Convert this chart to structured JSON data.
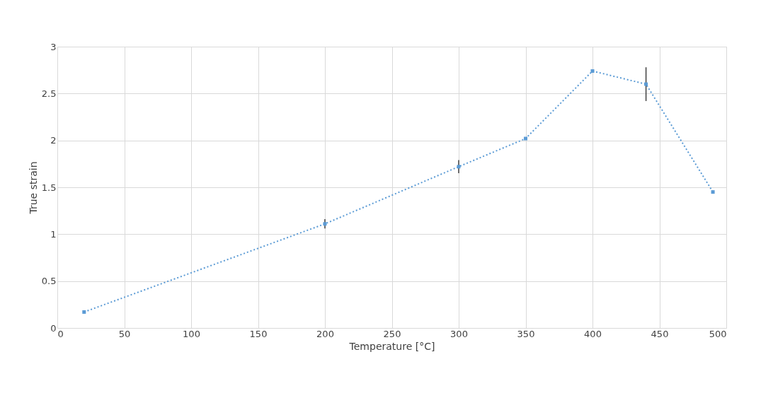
{
  "chart_data": {
    "type": "line",
    "xlabel": "Temperature [°C]",
    "ylabel": "True strain",
    "x": [
      20,
      200,
      300,
      350,
      400,
      440,
      490
    ],
    "series": [
      {
        "color": "#5b9bd5",
        "values": [
          0.17,
          1.11,
          1.72,
          2.02,
          2.74,
          2.6,
          1.45
        ],
        "errors": [
          null,
          0.05,
          0.07,
          null,
          null,
          0.18,
          null
        ]
      }
    ],
    "xlim": [
      0,
      500
    ],
    "xticks": [
      0,
      50,
      100,
      150,
      200,
      250,
      300,
      350,
      400,
      450,
      500
    ],
    "ylim": [
      0,
      3
    ],
    "yticks": [
      0,
      0.5,
      1,
      1.5,
      2,
      2.5,
      3
    ],
    "grid": true,
    "marker": "square",
    "line_style": "dotted"
  }
}
